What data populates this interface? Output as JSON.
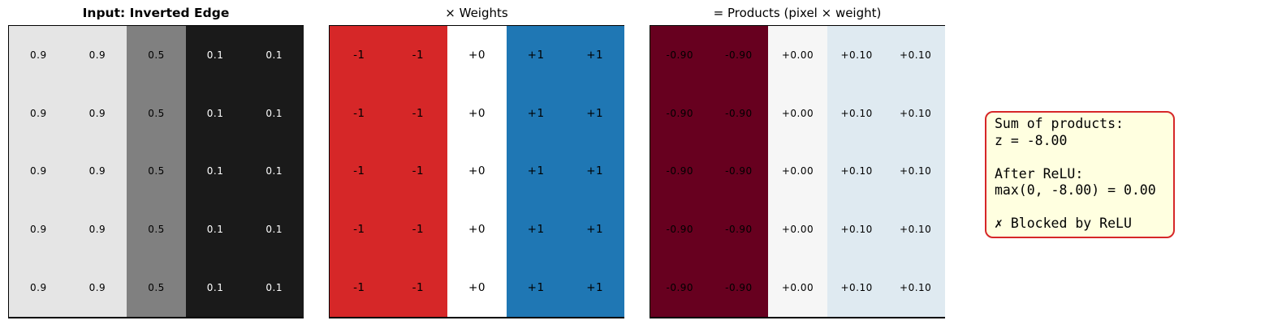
{
  "figure": {
    "background": "#ffffff"
  },
  "panels": [
    {
      "id": "input",
      "title": "Input: Inverted Edge",
      "n_rows": 5,
      "col_values": [
        "0.9",
        "0.9",
        "0.5",
        "0.1",
        "0.1"
      ],
      "col_colors": [
        "#e5e5e5",
        "#e5e5e5",
        "#808080",
        "#1a1a1a",
        "#1a1a1a"
      ],
      "col_text_colors": [
        "#000000",
        "#000000",
        "#000000",
        "#ffffff",
        "#ffffff"
      ]
    },
    {
      "id": "weights",
      "title": "× Weights",
      "n_rows": 5,
      "col_values": [
        "-1",
        "-1",
        "+0",
        "+1",
        "+1"
      ],
      "col_colors": [
        "#d62728",
        "#d62728",
        "#ffffff",
        "#1f77b4",
        "#1f77b4"
      ],
      "col_text_colors": [
        "#000000",
        "#000000",
        "#000000",
        "#000000",
        "#000000"
      ]
    },
    {
      "id": "products",
      "title": "= Products (pixel × weight)",
      "n_rows": 5,
      "col_values": [
        "-0.90",
        "-0.90",
        "+0.00",
        "+0.10",
        "+0.10"
      ],
      "col_colors": [
        "#67001f",
        "#67001f",
        "#f6f6f6",
        "#dfeaf1",
        "#dfeaf1"
      ],
      "col_text_colors": [
        "#000000",
        "#000000",
        "#000000",
        "#000000",
        "#000000"
      ]
    }
  ],
  "annotation": {
    "bg_color": "#ffffe0",
    "border_color": "#d62728",
    "lines": [
      "Sum of products:",
      "z = -8.00",
      "",
      "After ReLU:",
      "max(0, -8.00) = 0.00",
      "",
      "✗ Blocked by ReLU"
    ]
  },
  "chart_data": [
    {
      "type": "heatmap",
      "title": "Input: Inverted Edge",
      "colormap": "gray",
      "value_range": [
        0,
        1
      ],
      "values": [
        [
          0.9,
          0.9,
          0.5,
          0.1,
          0.1
        ],
        [
          0.9,
          0.9,
          0.5,
          0.1,
          0.1
        ],
        [
          0.9,
          0.9,
          0.5,
          0.1,
          0.1
        ],
        [
          0.9,
          0.9,
          0.5,
          0.1,
          0.1
        ],
        [
          0.9,
          0.9,
          0.5,
          0.1,
          0.1
        ]
      ]
    },
    {
      "type": "heatmap",
      "title": "× Weights",
      "colormap": "red-white-blue (negative=red, zero=white, positive=blue)",
      "value_range": [
        -1,
        1
      ],
      "values": [
        [
          -1,
          -1,
          0,
          1,
          1
        ],
        [
          -1,
          -1,
          0,
          1,
          1
        ],
        [
          -1,
          -1,
          0,
          1,
          1
        ],
        [
          -1,
          -1,
          0,
          1,
          1
        ],
        [
          -1,
          -1,
          0,
          1,
          1
        ]
      ]
    },
    {
      "type": "heatmap",
      "title": "= Products (pixel × weight)",
      "colormap": "RdBu",
      "value_range": [
        -1,
        1
      ],
      "values": [
        [
          -0.9,
          -0.9,
          0.0,
          0.1,
          0.1
        ],
        [
          -0.9,
          -0.9,
          0.0,
          0.1,
          0.1
        ],
        [
          -0.9,
          -0.9,
          0.0,
          0.1,
          0.1
        ],
        [
          -0.9,
          -0.9,
          0.0,
          0.1,
          0.1
        ],
        [
          -0.9,
          -0.9,
          0.0,
          0.1,
          0.1
        ]
      ]
    },
    {
      "type": "annotation",
      "summary": {
        "z": -8.0,
        "relu_output": 0.0,
        "status": "Blocked by ReLU"
      }
    }
  ]
}
